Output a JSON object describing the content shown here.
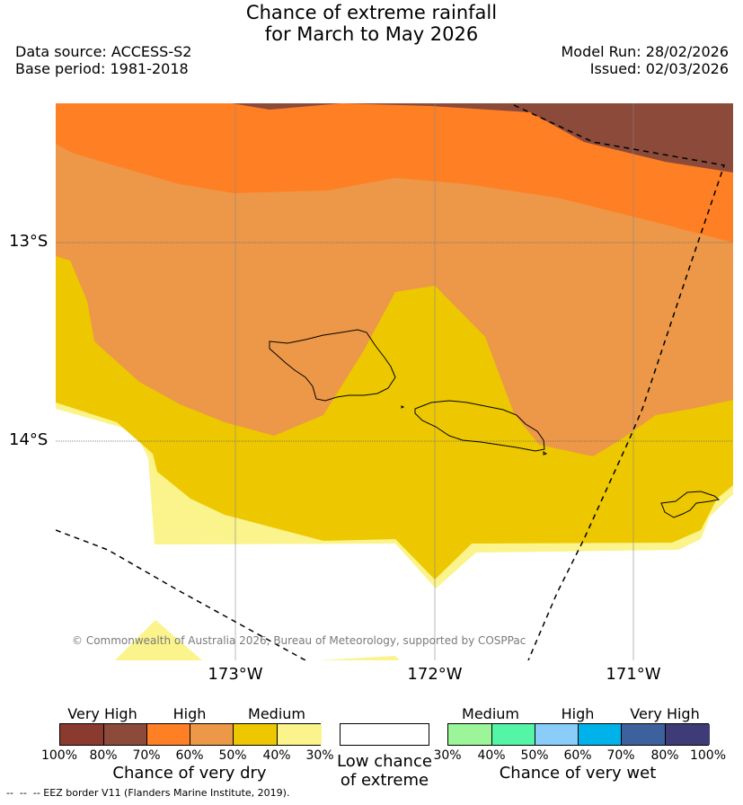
{
  "title": {
    "line1": "Chance of extreme rainfall",
    "line2": "for March to May 2026"
  },
  "meta": {
    "data_source": "Data source: ACCESS-S2",
    "base_period": "Base period: 1981-2018",
    "model_run": "Model Run: 28/02/2026",
    "issued": "Issued: 02/03/2026"
  },
  "axes": {
    "lat_13": "13°S",
    "lat_14": "14°S",
    "lon_173": "173°W",
    "lon_172": "172°W",
    "lon_171": "171°W"
  },
  "copyright": "© Commonwealth of Australia 2026, Bureau of Meteorology, supported by COSPPac",
  "colors": {
    "dry_100_80": "#8b3a30",
    "dry_80_70": "#8b4a3a",
    "dry_70_60": "#ff7f24",
    "dry_60_50": "#ec9848",
    "dry_50_40": "#edc800",
    "dry_40_30": "#fbf38c",
    "low": "#ffffff",
    "wet_30_40": "#9cf599",
    "wet_40_50": "#55f5a8",
    "wet_50_60": "#89cdf8",
    "wet_60_70": "#00b2ea",
    "wet_70_80": "#3c619d",
    "wet_80_100": "#3f3b76"
  },
  "legend": {
    "dry": {
      "very_high": "Very High",
      "high": "High",
      "medium": "Medium",
      "ticks": [
        "100%",
        "80%",
        "70%",
        "60%",
        "50%",
        "40%",
        "30%"
      ],
      "title": "Chance of very dry"
    },
    "low": {
      "line1": "Low chance",
      "line2": "of extreme"
    },
    "wet": {
      "medium": "Medium",
      "high": "High",
      "very_high": "Very High",
      "ticks": [
        "30%",
        "40%",
        "50%",
        "60%",
        "70%",
        "80%",
        "100%"
      ],
      "title": "Chance of very wet"
    }
  },
  "footnote": "--  --  -- EEZ border V11 (Flanders Marine Institute, 2019)."
}
